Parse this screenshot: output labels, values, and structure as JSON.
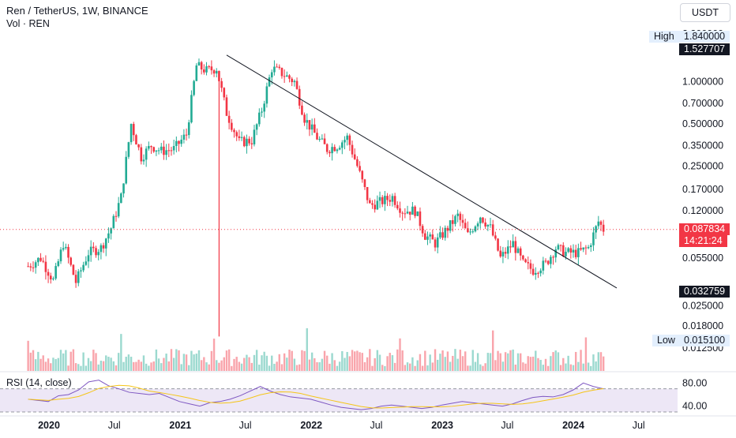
{
  "header": {
    "symbol_line": "Ren / TetherUS, 1W, BINANCE",
    "volume_label": "Vol · REN"
  },
  "currency_button": "USDT",
  "price_tags": {
    "high_label": "High",
    "high_value": "1.840000",
    "crosshair_value": "1.527707",
    "last_value": "0.087834",
    "countdown": "14:21:24",
    "marker_value": "0.032759",
    "low_label": "Low",
    "low_value": "0.015100"
  },
  "rsi": {
    "title": "RSI (14, close)",
    "tick_labels": [
      "80.00",
      "40.00"
    ]
  },
  "colors": {
    "up": "#22ab94",
    "down": "#f23645",
    "trendline": "#131722",
    "rsi_line": "#7e57c2",
    "rsi_ma": "#f5c518",
    "band_fill": "#ede7f6"
  },
  "chart_data": [
    {
      "type": "candlestick",
      "title": "Ren / TetherUS, 1W, BINANCE",
      "y_scale": "log",
      "ylim": [
        0.0095,
        2.5
      ],
      "y_ticks": [
        "2.200000",
        "1.000000",
        "0.700000",
        "0.500000",
        "0.350000",
        "0.250000",
        "0.170000",
        "0.120000",
        "0.055000",
        "0.025000",
        "0.018000",
        "0.012500"
      ],
      "x_ticks": [
        "2020",
        "Jul",
        "2021",
        "Jul",
        "2022",
        "Jul",
        "2023",
        "Jul",
        "2024",
        "Jul"
      ],
      "x_range": [
        "2019-11",
        "2024-10"
      ],
      "grid": false,
      "current_price": 0.087834,
      "high": 1.84,
      "low": 0.0151,
      "trendline": [
        {
          "date": "2021-05-10",
          "value": 1.55
        },
        {
          "date": "2024-05-01",
          "value": 0.0335
        }
      ],
      "anchors": [
        {
          "date": "2019-11-04",
          "value": 0.048
        },
        {
          "date": "2019-12-09",
          "value": 0.055
        },
        {
          "date": "2020-01-13",
          "value": 0.038
        },
        {
          "date": "2020-02-10",
          "value": 0.07
        },
        {
          "date": "2020-03-16",
          "value": 0.037
        },
        {
          "date": "2020-04-20",
          "value": 0.06
        },
        {
          "date": "2020-05-25",
          "value": 0.065
        },
        {
          "date": "2020-06-22",
          "value": 0.09
        },
        {
          "date": "2020-07-20",
          "value": 0.15
        },
        {
          "date": "2020-08-17",
          "value": 0.5
        },
        {
          "date": "2020-09-14",
          "value": 0.29
        },
        {
          "date": "2020-10-12",
          "value": 0.35
        },
        {
          "date": "2020-11-09",
          "value": 0.32
        },
        {
          "date": "2020-12-14",
          "value": 0.33
        },
        {
          "date": "2021-01-18",
          "value": 0.42
        },
        {
          "date": "2021-02-15",
          "value": 1.3
        },
        {
          "date": "2021-03-15",
          "value": 1.2
        },
        {
          "date": "2021-04-12",
          "value": 1.25
        },
        {
          "date": "2021-05-10",
          "value": 0.6
        },
        {
          "date": "2021-06-14",
          "value": 0.37
        },
        {
          "date": "2021-07-19",
          "value": 0.38
        },
        {
          "date": "2021-08-16",
          "value": 0.63
        },
        {
          "date": "2021-09-13",
          "value": 1.25
        },
        {
          "date": "2021-10-11",
          "value": 1.15
        },
        {
          "date": "2021-11-15",
          "value": 1.0
        },
        {
          "date": "2021-12-13",
          "value": 0.55
        },
        {
          "date": "2022-01-17",
          "value": 0.4
        },
        {
          "date": "2022-02-14",
          "value": 0.33
        },
        {
          "date": "2022-03-14",
          "value": 0.35
        },
        {
          "date": "2022-04-11",
          "value": 0.4
        },
        {
          "date": "2022-05-09",
          "value": 0.25
        },
        {
          "date": "2022-06-13",
          "value": 0.13
        },
        {
          "date": "2022-07-18",
          "value": 0.14
        },
        {
          "date": "2022-08-15",
          "value": 0.15
        },
        {
          "date": "2022-09-12",
          "value": 0.12
        },
        {
          "date": "2022-10-17",
          "value": 0.12
        },
        {
          "date": "2022-11-14",
          "value": 0.08
        },
        {
          "date": "2022-12-12",
          "value": 0.07
        },
        {
          "date": "2023-01-16",
          "value": 0.09
        },
        {
          "date": "2023-02-13",
          "value": 0.11
        },
        {
          "date": "2023-03-13",
          "value": 0.08
        },
        {
          "date": "2023-04-17",
          "value": 0.11
        },
        {
          "date": "2023-05-15",
          "value": 0.09
        },
        {
          "date": "2023-06-12",
          "value": 0.055
        },
        {
          "date": "2023-07-17",
          "value": 0.07
        },
        {
          "date": "2023-08-14",
          "value": 0.05
        },
        {
          "date": "2023-09-11",
          "value": 0.045
        },
        {
          "date": "2023-10-16",
          "value": 0.05
        },
        {
          "date": "2023-11-13",
          "value": 0.065
        },
        {
          "date": "2023-12-11",
          "value": 0.06
        },
        {
          "date": "2024-01-15",
          "value": 0.06
        },
        {
          "date": "2024-02-12",
          "value": 0.065
        },
        {
          "date": "2024-03-11",
          "value": 0.1
        },
        {
          "date": "2024-03-25",
          "value": 0.088
        }
      ]
    },
    {
      "type": "line",
      "title": "RSI (14, close)",
      "ylim": [
        30,
        90
      ],
      "bands": [
        70,
        30
      ],
      "y_ticks": [
        "80.00",
        "40.00"
      ],
      "series": [
        {
          "values": [
            52,
            50,
            48,
            58,
            60,
            68,
            82,
            85,
            75,
            70,
            64,
            62,
            60,
            62,
            55,
            48,
            44,
            40,
            46,
            48,
            52,
            58,
            66,
            74,
            66,
            60,
            56,
            54,
            52,
            47,
            42,
            38,
            36,
            34,
            36,
            40,
            42,
            40,
            38,
            36,
            38,
            42,
            45,
            48,
            46,
            44,
            42,
            40,
            44,
            50,
            55,
            57,
            56,
            60,
            68,
            80,
            74,
            70
          ]
        }
      ]
    }
  ]
}
